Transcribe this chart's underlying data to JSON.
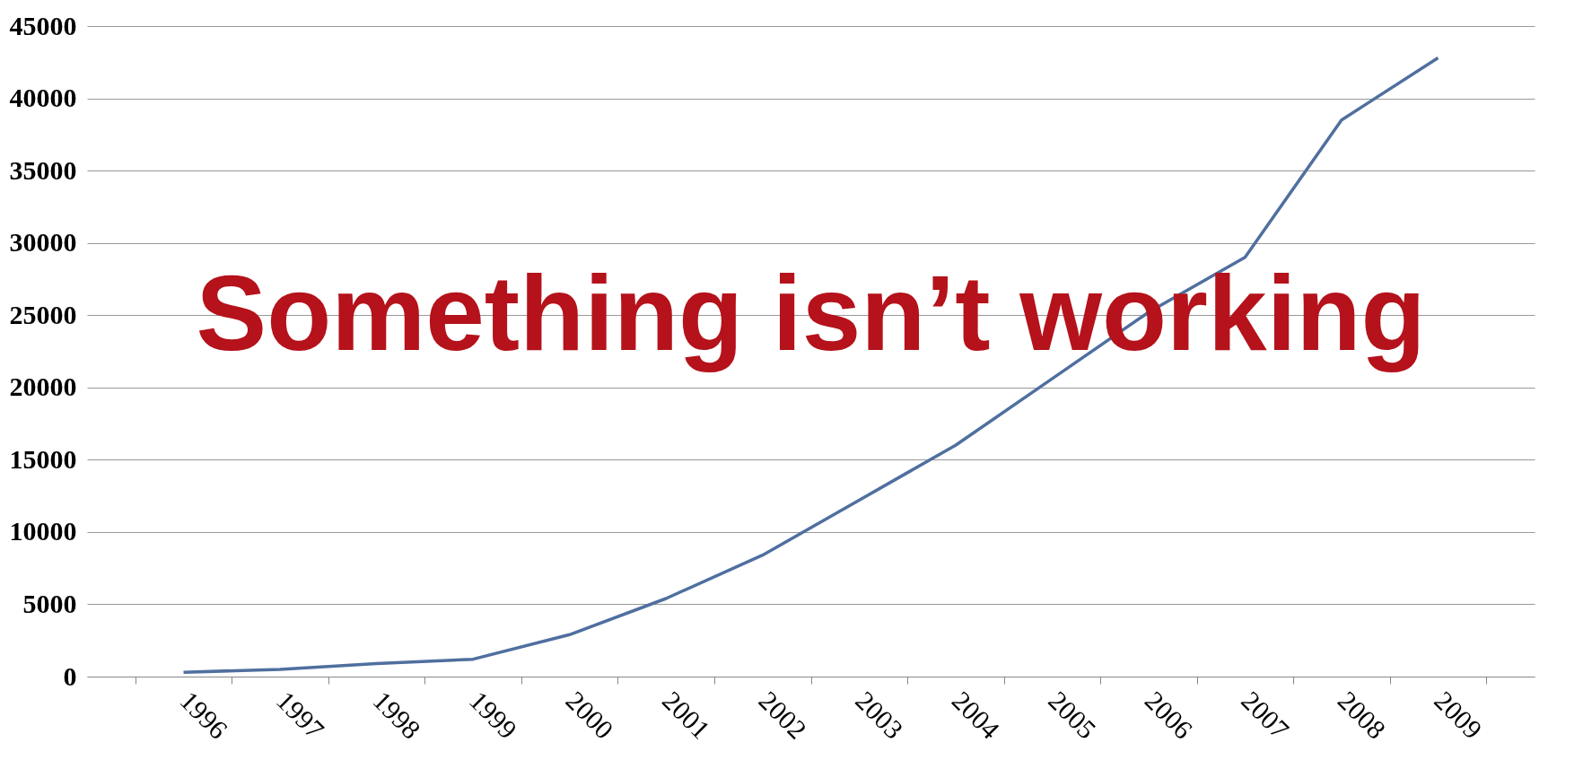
{
  "chart_data": {
    "type": "line",
    "categories": [
      "1996",
      "1997",
      "1998",
      "1999",
      "2000",
      "2001",
      "2002",
      "2003",
      "2004",
      "2005",
      "2006",
      "2007",
      "2008",
      "2009"
    ],
    "series": [
      {
        "color": "#4f6f9f",
        "values": [
          300,
          500,
          900,
          1200,
          2900,
          5400,
          8400,
          12200,
          16000,
          20600,
          25200,
          29000,
          38500,
          42800
        ]
      }
    ],
    "ylim": [
      0,
      45000
    ],
    "yticks": [
      0,
      5000,
      10000,
      15000,
      20000,
      25000,
      30000,
      35000,
      40000,
      45000
    ],
    "grid": "y",
    "marker": "none",
    "annotations": [
      "Something isn’t  working"
    ]
  }
}
